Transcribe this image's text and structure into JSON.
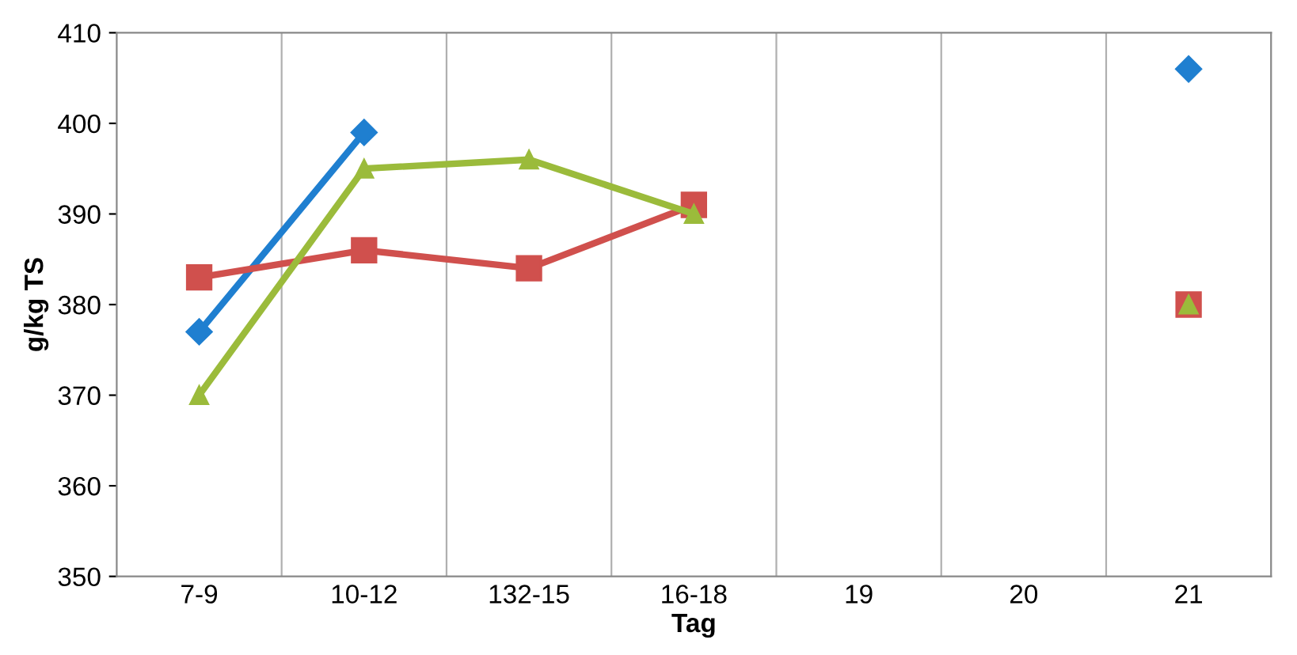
{
  "chart_data": {
    "type": "line",
    "xlabel": "Tag",
    "ylabel": "g/kg TS",
    "categories": [
      "7-9",
      "10-12",
      "132-15",
      "16-18",
      "19",
      "20",
      "21"
    ],
    "series": [
      {
        "color": "#1f7fd0",
        "values": [
          377,
          399,
          null,
          null,
          null,
          null,
          406
        ],
        "marker": "diamond"
      },
      {
        "color": "#d0504d",
        "values": [
          383,
          386,
          384,
          391,
          null,
          null,
          380
        ],
        "marker": "square"
      },
      {
        "color": "#9bbb3b",
        "values": [
          370,
          395,
          396,
          390,
          null,
          null,
          380
        ],
        "marker": "triangle"
      }
    ],
    "ylim": [
      350,
      410
    ],
    "yticks": [
      350,
      360,
      370,
      380,
      390,
      400,
      410
    ],
    "grid": "x",
    "legend": false,
    "line_style": "solid"
  }
}
